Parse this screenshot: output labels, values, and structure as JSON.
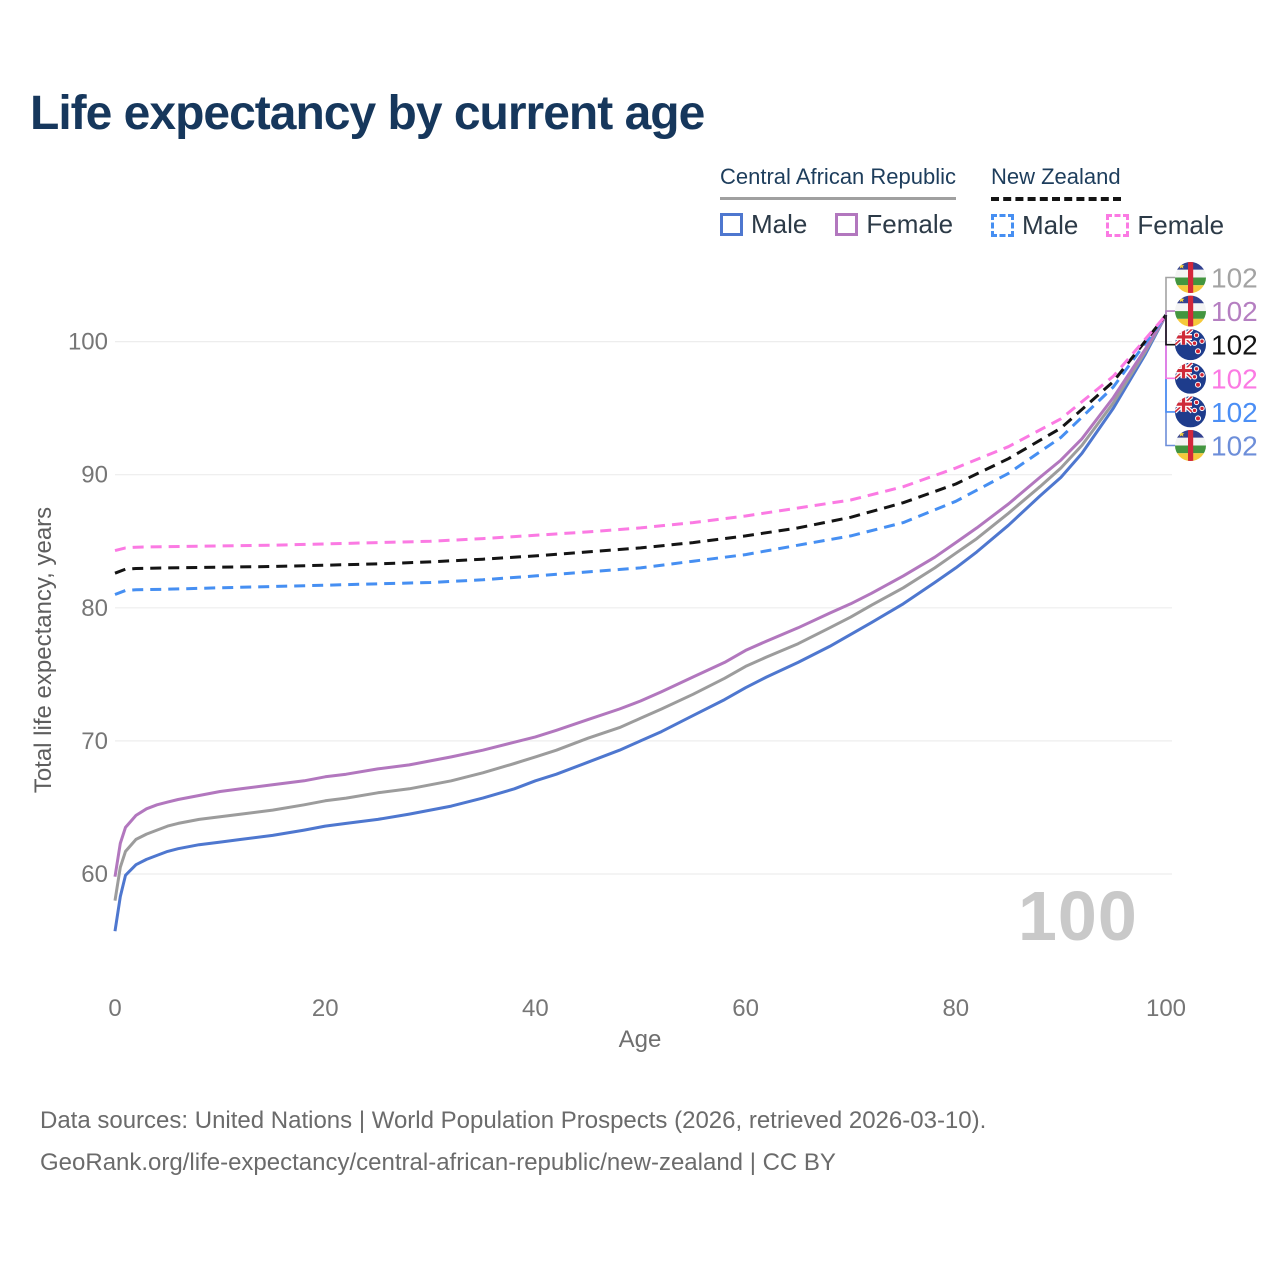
{
  "title": "Life expectancy by current age",
  "legend": {
    "groups": [
      {
        "label": "Central African Republic",
        "line_style": "solid",
        "line_color": "#a0a0a0",
        "items": [
          {
            "label": "Male",
            "color": "#4e77cf",
            "style": "solid"
          },
          {
            "label": "Female",
            "color": "#b277be",
            "style": "solid"
          }
        ]
      },
      {
        "label": "New Zealand",
        "line_style": "dashed",
        "line_color": "#141414",
        "items": [
          {
            "label": "Male",
            "color": "#468ff2",
            "style": "dashed"
          },
          {
            "label": "Female",
            "color": "#fb7ae3",
            "style": "dashed"
          }
        ]
      }
    ]
  },
  "y_axis": {
    "title": "Total life expectancy, years",
    "ticks": [
      60,
      70,
      80,
      90,
      100
    ],
    "range": [
      52,
      104
    ]
  },
  "x_axis": {
    "title": "Age",
    "ticks": [
      0,
      20,
      40,
      60,
      80,
      100
    ],
    "range": [
      0,
      100
    ]
  },
  "watermark": "100",
  "chart_data": {
    "type": "line",
    "title": "Life expectancy by current age",
    "xlabel": "Age",
    "ylabel": "Total life expectancy, years",
    "x_range": [
      0,
      100
    ],
    "y_gridlines": [
      60,
      70,
      80,
      90,
      100
    ],
    "series": [
      {
        "id": "car-male",
        "name": "Central African Republic Male",
        "color": "#4e77cf",
        "dash": false,
        "points": [
          [
            0,
            55.7
          ],
          [
            0.5,
            58.3
          ],
          [
            1,
            59.9
          ],
          [
            2,
            60.7
          ],
          [
            3,
            61.1
          ],
          [
            4,
            61.4
          ],
          [
            5,
            61.7
          ],
          [
            6,
            61.9
          ],
          [
            8,
            62.2
          ],
          [
            10,
            62.4
          ],
          [
            12,
            62.6
          ],
          [
            15,
            62.9
          ],
          [
            18,
            63.3
          ],
          [
            20,
            63.6
          ],
          [
            22,
            63.8
          ],
          [
            25,
            64.1
          ],
          [
            28,
            64.5
          ],
          [
            30,
            64.8
          ],
          [
            32,
            65.1
          ],
          [
            35,
            65.7
          ],
          [
            38,
            66.4
          ],
          [
            40,
            67.0
          ],
          [
            42,
            67.5
          ],
          [
            45,
            68.4
          ],
          [
            48,
            69.3
          ],
          [
            50,
            70.0
          ],
          [
            52,
            70.7
          ],
          [
            55,
            71.9
          ],
          [
            58,
            73.1
          ],
          [
            60,
            74.0
          ],
          [
            62,
            74.8
          ],
          [
            65,
            75.9
          ],
          [
            68,
            77.1
          ],
          [
            70,
            78.0
          ],
          [
            72,
            78.9
          ],
          [
            75,
            80.3
          ],
          [
            78,
            81.9
          ],
          [
            80,
            83.0
          ],
          [
            82,
            84.2
          ],
          [
            85,
            86.2
          ],
          [
            88,
            88.4
          ],
          [
            90,
            89.8
          ],
          [
            92,
            91.6
          ],
          [
            95,
            95.0
          ],
          [
            98,
            99.0
          ],
          [
            100,
            102
          ]
        ]
      },
      {
        "id": "car-total",
        "name": "Central African Republic",
        "color": "#9c9c9c",
        "dash": false,
        "points": [
          [
            0,
            58.0
          ],
          [
            0.5,
            60.5
          ],
          [
            1,
            61.7
          ],
          [
            2,
            62.6
          ],
          [
            3,
            63.0
          ],
          [
            4,
            63.3
          ],
          [
            5,
            63.6
          ],
          [
            6,
            63.8
          ],
          [
            8,
            64.1
          ],
          [
            10,
            64.3
          ],
          [
            12,
            64.5
          ],
          [
            15,
            64.8
          ],
          [
            18,
            65.2
          ],
          [
            20,
            65.5
          ],
          [
            22,
            65.7
          ],
          [
            25,
            66.1
          ],
          [
            28,
            66.4
          ],
          [
            30,
            66.7
          ],
          [
            32,
            67.0
          ],
          [
            35,
            67.6
          ],
          [
            38,
            68.3
          ],
          [
            40,
            68.8
          ],
          [
            42,
            69.3
          ],
          [
            45,
            70.2
          ],
          [
            48,
            71.0
          ],
          [
            50,
            71.7
          ],
          [
            52,
            72.4
          ],
          [
            55,
            73.5
          ],
          [
            58,
            74.7
          ],
          [
            60,
            75.6
          ],
          [
            62,
            76.3
          ],
          [
            65,
            77.3
          ],
          [
            68,
            78.5
          ],
          [
            70,
            79.3
          ],
          [
            72,
            80.2
          ],
          [
            75,
            81.5
          ],
          [
            78,
            83.0
          ],
          [
            80,
            84.1
          ],
          [
            82,
            85.2
          ],
          [
            85,
            87.1
          ],
          [
            88,
            89.1
          ],
          [
            90,
            90.5
          ],
          [
            92,
            92.2
          ],
          [
            95,
            95.4
          ],
          [
            98,
            99.2
          ],
          [
            100,
            102
          ]
        ]
      },
      {
        "id": "car-female",
        "name": "Central African Republic Female",
        "color": "#b277be",
        "dash": false,
        "points": [
          [
            0,
            59.8
          ],
          [
            0.5,
            62.3
          ],
          [
            1,
            63.5
          ],
          [
            2,
            64.4
          ],
          [
            3,
            64.9
          ],
          [
            4,
            65.2
          ],
          [
            5,
            65.4
          ],
          [
            6,
            65.6
          ],
          [
            8,
            65.9
          ],
          [
            10,
            66.2
          ],
          [
            12,
            66.4
          ],
          [
            15,
            66.7
          ],
          [
            18,
            67.0
          ],
          [
            20,
            67.3
          ],
          [
            22,
            67.5
          ],
          [
            25,
            67.9
          ],
          [
            28,
            68.2
          ],
          [
            30,
            68.5
          ],
          [
            32,
            68.8
          ],
          [
            35,
            69.3
          ],
          [
            38,
            69.9
          ],
          [
            40,
            70.3
          ],
          [
            42,
            70.8
          ],
          [
            45,
            71.6
          ],
          [
            48,
            72.4
          ],
          [
            50,
            73.0
          ],
          [
            52,
            73.7
          ],
          [
            55,
            74.8
          ],
          [
            58,
            75.9
          ],
          [
            60,
            76.8
          ],
          [
            62,
            77.5
          ],
          [
            65,
            78.5
          ],
          [
            68,
            79.6
          ],
          [
            70,
            80.3
          ],
          [
            72,
            81.1
          ],
          [
            75,
            82.4
          ],
          [
            78,
            83.8
          ],
          [
            80,
            84.9
          ],
          [
            82,
            86.0
          ],
          [
            85,
            87.8
          ],
          [
            88,
            89.8
          ],
          [
            90,
            91.1
          ],
          [
            92,
            92.7
          ],
          [
            95,
            95.8
          ],
          [
            98,
            99.4
          ],
          [
            100,
            102
          ]
        ]
      },
      {
        "id": "nz-male",
        "name": "New Zealand Male",
        "color": "#468ff2",
        "dash": true,
        "points": [
          [
            0,
            81.0
          ],
          [
            1,
            81.3
          ],
          [
            2,
            81.35
          ],
          [
            5,
            81.4
          ],
          [
            10,
            81.5
          ],
          [
            15,
            81.6
          ],
          [
            20,
            81.7
          ],
          [
            25,
            81.8
          ],
          [
            30,
            81.9
          ],
          [
            35,
            82.1
          ],
          [
            40,
            82.4
          ],
          [
            45,
            82.7
          ],
          [
            50,
            83.0
          ],
          [
            55,
            83.5
          ],
          [
            60,
            84.0
          ],
          [
            65,
            84.7
          ],
          [
            70,
            85.4
          ],
          [
            75,
            86.4
          ],
          [
            80,
            88.0
          ],
          [
            85,
            90.1
          ],
          [
            90,
            92.8
          ],
          [
            95,
            96.6
          ],
          [
            100,
            102
          ]
        ]
      },
      {
        "id": "nz-total",
        "name": "New Zealand",
        "color": "#141414",
        "dash": true,
        "points": [
          [
            0,
            82.6
          ],
          [
            1,
            82.9
          ],
          [
            2,
            82.95
          ],
          [
            5,
            83.0
          ],
          [
            10,
            83.05
          ],
          [
            15,
            83.1
          ],
          [
            20,
            83.2
          ],
          [
            25,
            83.3
          ],
          [
            30,
            83.45
          ],
          [
            35,
            83.65
          ],
          [
            40,
            83.9
          ],
          [
            45,
            84.2
          ],
          [
            50,
            84.5
          ],
          [
            55,
            84.9
          ],
          [
            60,
            85.4
          ],
          [
            65,
            86.0
          ],
          [
            70,
            86.8
          ],
          [
            75,
            87.9
          ],
          [
            80,
            89.3
          ],
          [
            85,
            91.2
          ],
          [
            90,
            93.5
          ],
          [
            95,
            97.0
          ],
          [
            100,
            102
          ]
        ]
      },
      {
        "id": "nz-female",
        "name": "New Zealand Female",
        "color": "#fb7ae3",
        "dash": true,
        "points": [
          [
            0,
            84.3
          ],
          [
            1,
            84.5
          ],
          [
            2,
            84.55
          ],
          [
            5,
            84.6
          ],
          [
            10,
            84.65
          ],
          [
            15,
            84.7
          ],
          [
            20,
            84.8
          ],
          [
            25,
            84.9
          ],
          [
            30,
            85.0
          ],
          [
            35,
            85.2
          ],
          [
            40,
            85.45
          ],
          [
            45,
            85.7
          ],
          [
            50,
            86.0
          ],
          [
            55,
            86.4
          ],
          [
            60,
            86.9
          ],
          [
            65,
            87.5
          ],
          [
            70,
            88.1
          ],
          [
            75,
            89.1
          ],
          [
            80,
            90.5
          ],
          [
            85,
            92.1
          ],
          [
            90,
            94.2
          ],
          [
            95,
            97.4
          ],
          [
            100,
            102
          ]
        ]
      }
    ],
    "end_labels": [
      {
        "series": "car-total",
        "flag": "car",
        "value": "102",
        "color": "#a3a3a3"
      },
      {
        "series": "car-female",
        "flag": "car",
        "value": "102",
        "color": "#b57fc1"
      },
      {
        "series": "nz-total",
        "flag": "nz",
        "value": "102",
        "color": "#141414"
      },
      {
        "series": "nz-female",
        "flag": "nz",
        "value": "102",
        "color": "#fb7ae3"
      },
      {
        "series": "nz-male",
        "flag": "nz",
        "value": "102",
        "color": "#4a8ef5"
      },
      {
        "series": "car-male",
        "flag": "car",
        "value": "102",
        "color": "#6d8ed9"
      }
    ]
  },
  "footer": {
    "line1": "Data sources: United Nations | World Population Prospects (2026, retrieved 2026-03-10).",
    "line2": "GeoRank.org/life-expectancy/central-african-republic/new-zealand | CC BY"
  }
}
